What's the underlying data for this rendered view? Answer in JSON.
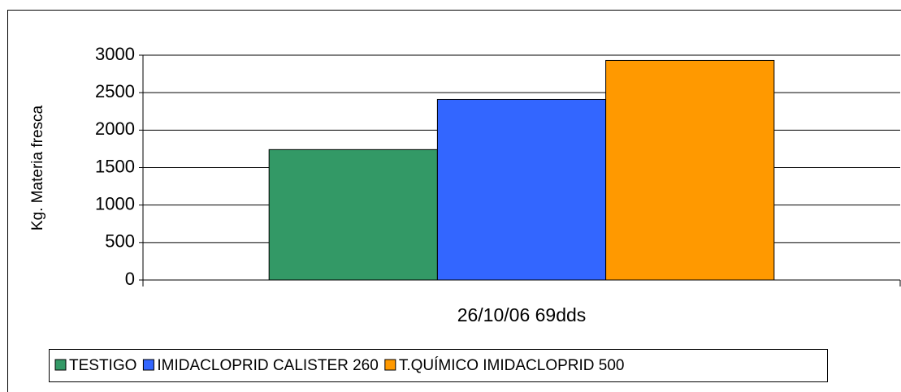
{
  "chart_data": {
    "type": "bar",
    "y_label": "Kg. Materia fresca",
    "categories": [
      "26/10/06 69dds"
    ],
    "series": [
      {
        "name": "TESTIGO",
        "color": "#339966",
        "values": [
          1740
        ]
      },
      {
        "name": "IMIDACLOPRID CALISTER 260",
        "color": "#3366ff",
        "values": [
          2410
        ]
      },
      {
        "name": "T.QUÍMICO IMIDACLOPRID 500",
        "color": "#ff9900",
        "values": [
          2930
        ]
      }
    ],
    "ylim": [
      0,
      3000
    ],
    "yticks": [
      0,
      500,
      1000,
      1500,
      2000,
      2500,
      3000
    ],
    "grid": true,
    "legend": "bottom"
  }
}
